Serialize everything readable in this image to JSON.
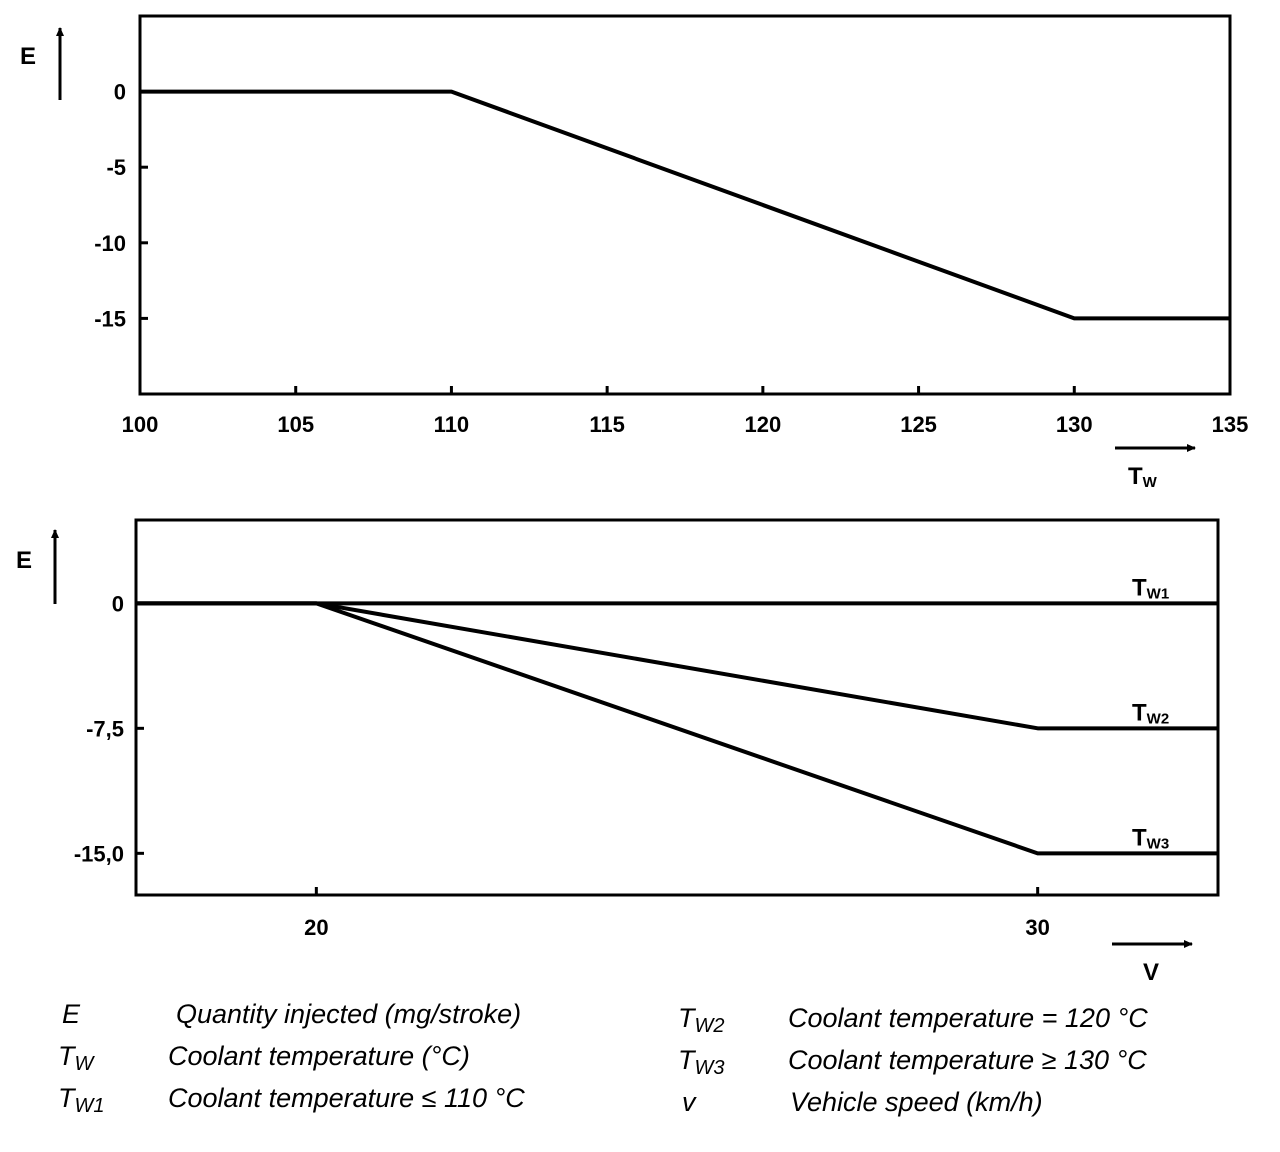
{
  "chart_data": [
    {
      "type": "line",
      "title": "",
      "ylabel": "E",
      "xlabel_main": "T",
      "xlabel_sub": "W",
      "xlim": [
        100,
        135
      ],
      "ylim": [
        -20,
        5
      ],
      "x_ticks": [
        100,
        105,
        110,
        115,
        120,
        125,
        130,
        135
      ],
      "x_tick_labels": [
        "100",
        "105",
        "110",
        "115",
        "120",
        "125",
        "130",
        "135"
      ],
      "y_ticks": [
        0,
        -5,
        -10,
        -15
      ],
      "y_tick_labels": [
        "0",
        "-5",
        "-10",
        "-15"
      ],
      "grid": false,
      "series": [
        {
          "x": [
            100,
            110,
            130,
            135
          ],
          "y": [
            0,
            0,
            -15,
            -15
          ]
        }
      ]
    },
    {
      "type": "line",
      "title": "",
      "ylabel": "E",
      "xlabel": "V",
      "xlim": [
        17.5,
        32.5
      ],
      "ylim": [
        -17.5,
        5.0
      ],
      "x_ticks": [
        20,
        30
      ],
      "x_tick_labels": [
        "20",
        "30"
      ],
      "y_ticks": [
        0,
        -7.5,
        -15.0
      ],
      "y_tick_labels": [
        "0",
        "-7,5",
        "-15,0"
      ],
      "grid": false,
      "series": [
        {
          "name_main": "T",
          "name_sub": "W1",
          "x": [
            17.5,
            20,
            32.5
          ],
          "y": [
            0,
            0,
            0
          ]
        },
        {
          "name_main": "T",
          "name_sub": "W2",
          "x": [
            17.5,
            20,
            30,
            32.5
          ],
          "y": [
            0,
            0,
            -7.5,
            -7.5
          ]
        },
        {
          "name_main": "T",
          "name_sub": "W3",
          "x": [
            17.5,
            20,
            30,
            32.5
          ],
          "y": [
            0,
            0,
            -15.0,
            -15.0
          ]
        }
      ]
    }
  ],
  "legend": [
    {
      "symbol_main": "E",
      "symbol_sub": "",
      "text": "Quantity injected (mg/stroke)"
    },
    {
      "symbol_main": "T",
      "symbol_sub": "W",
      "text": "Coolant temperature (°C)"
    },
    {
      "symbol_main": "T",
      "symbol_sub": "W1",
      "text": "Coolant temperature ≤ 110 °C"
    },
    {
      "symbol_main": "T",
      "symbol_sub": "W2",
      "text": "Coolant temperature = 120 °C"
    },
    {
      "symbol_main": "T",
      "symbol_sub": "W3",
      "text": "Coolant temperature ≥ 130 °C"
    },
    {
      "symbol_main": "v",
      "symbol_sub": "",
      "text": "Vehicle speed (km/h)"
    }
  ]
}
